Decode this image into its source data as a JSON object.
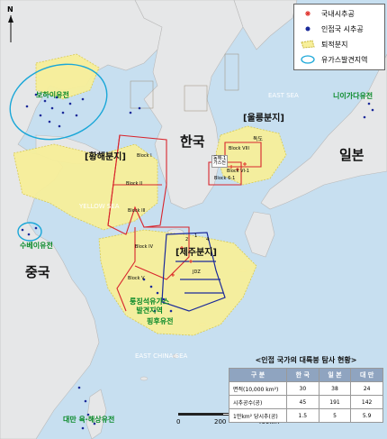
{
  "legend": {
    "items": [
      {
        "label": "국내시추공",
        "color": "#e0312b"
      },
      {
        "label": "인접국 시추공",
        "color": "#1b2a9a"
      },
      {
        "label": "퇴적분지",
        "color": "#f7ef9a"
      },
      {
        "label": "유가스발견지역",
        "color": "#1aa7d8"
      }
    ]
  },
  "labels": {
    "korea": "한국",
    "china": "중국",
    "japan": "일본",
    "ulleung_basin": "[울릉분지]",
    "yellow_sea_basin": "[황해분지]",
    "jeju_basin": "[제주분지]",
    "east_sea": "EAST SEA",
    "yellow_sea": "YELLOW SEA",
    "east_china_sea": "EAST CHINA SEA",
    "dokdo": "독도",
    "donghae_gas": "동해-1\n가스전"
  },
  "fields": {
    "bohai": "보하이유전",
    "niigata": "니이가다유전",
    "subei": "수베이유전",
    "longjing": "룽징석유가스\n발견지역",
    "pinghu": "핑후유전",
    "taiwan": "대만 육·해상유전"
  },
  "blocks": [
    "Block I",
    "Block II",
    "Block III",
    "Block IV",
    "Block V",
    "Block VI-1",
    "Block VIII",
    "Block 6-1",
    "JDZ",
    "2",
    "4",
    "1"
  ],
  "north_label": "N",
  "scale": {
    "ticks": [
      "0",
      "200",
      "400km"
    ]
  },
  "table": {
    "title": "<인접 국가의 대륙붕 탐사 현황>",
    "headers": [
      "구 분",
      "한 국",
      "일 본",
      "대 만"
    ],
    "rows": [
      {
        "label": "면적(10,000 km²)",
        "values": [
          "30",
          "38",
          "24"
        ]
      },
      {
        "label": "시추공수(공)",
        "values": [
          "45",
          "191",
          "142"
        ]
      },
      {
        "label": "1만km² 당시추(공)",
        "values": [
          "1.5",
          "5",
          "5.9"
        ]
      }
    ]
  }
}
